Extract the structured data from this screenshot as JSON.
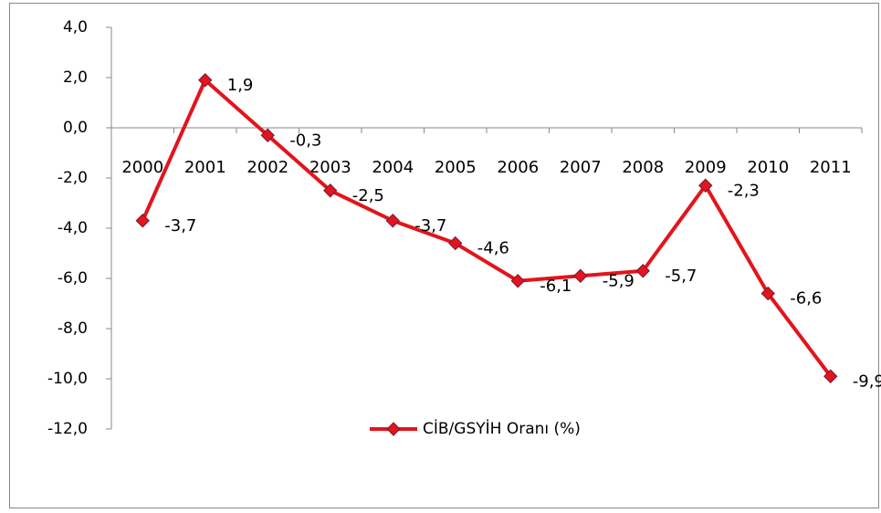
{
  "chart_data": {
    "type": "line",
    "categories": [
      "2000",
      "2001",
      "2002",
      "2003",
      "2004",
      "2005",
      "2006",
      "2007",
      "2008",
      "2009",
      "2010",
      "2011"
    ],
    "series": [
      {
        "name": "CİB/GSYİH Oranı (%)",
        "color": "#e3141b",
        "values": [
          -3.7,
          1.9,
          -0.3,
          -2.5,
          -3.7,
          -4.6,
          -6.1,
          -5.9,
          -5.7,
          -2.3,
          -6.6,
          -9.9
        ],
        "value_labels": [
          "-3,7",
          "1,9",
          "-0,3",
          "-2,5",
          "-3,7",
          "-4,6",
          "-6,1",
          "-5,9",
          "-5,7",
          "-2,3",
          "-6,6",
          "-9,9"
        ]
      }
    ],
    "ylim": [
      -12,
      4
    ],
    "yticks": [
      {
        "value": 4,
        "label": "4,0"
      },
      {
        "value": 2,
        "label": "2,0"
      },
      {
        "value": 0,
        "label": "0,0"
      },
      {
        "value": -2,
        "label": "-2,0"
      },
      {
        "value": -4,
        "label": "-4,0"
      },
      {
        "value": -6,
        "label": "-6,0"
      },
      {
        "value": -8,
        "label": "-8,0"
      },
      {
        "value": -10,
        "label": "-10,0"
      },
      {
        "value": -12,
        "label": "-12,0"
      }
    ],
    "grid": false,
    "legend": "bottom"
  }
}
